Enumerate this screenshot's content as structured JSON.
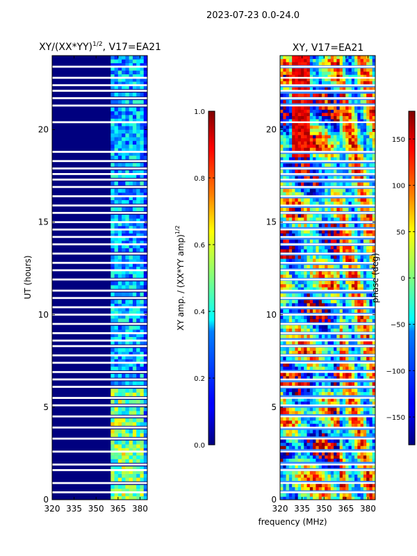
{
  "suptitle": "2023-07-23 0.0-24.0",
  "chart_data": [
    {
      "type": "heatmap",
      "title_main": "XY/(XX*YY)",
      "title_exp": "1/2",
      "title_tail": ", V17=EA21",
      "x_ticks": [
        320,
        335,
        350,
        365,
        380
      ],
      "xlim": [
        320,
        385
      ],
      "ylabel": "UT (hours)",
      "y_ticks": [
        0,
        5,
        10,
        15,
        20
      ],
      "ylim": [
        0,
        24
      ],
      "colorbar": {
        "label_main": "XY amp. / (XX*YY amp)",
        "label_exp": "1/2",
        "ticks": [
          "0.0",
          "0.2",
          "0.4",
          "0.6",
          "0.8",
          "1.0"
        ],
        "tick_values": [
          0,
          0.2,
          0.4,
          0.6,
          0.8,
          1.0
        ],
        "range": [
          0,
          1
        ]
      }
    },
    {
      "type": "heatmap",
      "title": "XY, V17=EA21",
      "x_ticks": [
        320,
        335,
        350,
        365,
        380
      ],
      "xlim": [
        320,
        385
      ],
      "xlabel": "frequency (MHz)",
      "y_ticks": [
        0,
        5,
        10,
        15,
        20
      ],
      "ylim": [
        0,
        24
      ],
      "colorbar": {
        "label": "phase (deg)",
        "ticks": [
          "150",
          "100",
          "50",
          "0",
          "−50",
          "−100",
          "−150"
        ],
        "tick_values": [
          150,
          100,
          50,
          0,
          -50,
          -100,
          -150
        ],
        "range": [
          -180,
          180
        ]
      }
    }
  ],
  "gap_hours": [
    0.4,
    0.9,
    1.6,
    1.9,
    2.6,
    3.3,
    3.9,
    4.5,
    5.1,
    5.5,
    6.1,
    6.5,
    6.9,
    7.4,
    7.8,
    8.3,
    8.6,
    9.0,
    9.5,
    10.0,
    10.4,
    10.9,
    11.3,
    11.9,
    12.4,
    12.8,
    13.3,
    13.8,
    14.2,
    14.6,
    15.0,
    15.5,
    15.9,
    16.4,
    16.9,
    17.3,
    17.6,
    17.9,
    18.3,
    18.8,
    20.4,
    21.3,
    21.7,
    22.1,
    22.4,
    22.8,
    23.4
  ]
}
